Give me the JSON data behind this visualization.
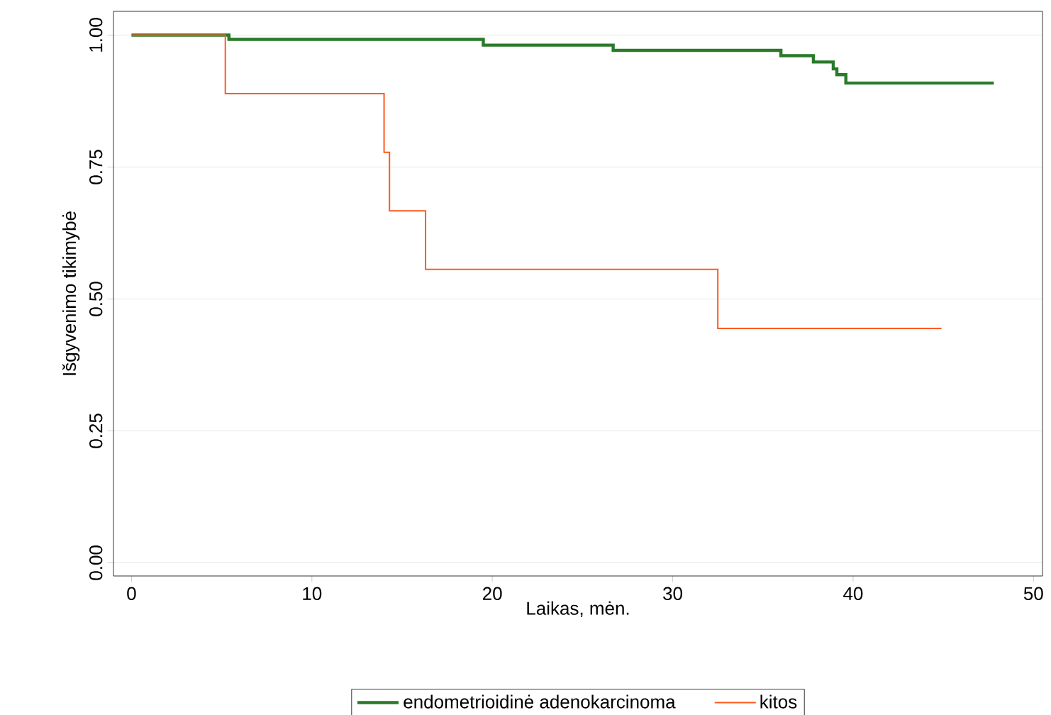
{
  "chart_data": {
    "type": "step",
    "xlabel": "Laikas, mėn.",
    "ylabel": "Išgyvenimo tikimybė",
    "xlim": [
      -1,
      50.5
    ],
    "ylim": [
      -0.025,
      1.045
    ],
    "xticks": [
      0,
      10,
      20,
      30,
      40,
      50
    ],
    "yticks": [
      {
        "value": 0,
        "label": "0.00"
      },
      {
        "value": 0.25,
        "label": "0.25"
      },
      {
        "value": 0.5,
        "label": "0.50"
      },
      {
        "value": 0.75,
        "label": "0.75"
      },
      {
        "value": 1,
        "label": "1.00"
      }
    ],
    "grid": "y",
    "legend": "bottom",
    "series": [
      {
        "name": "endometrioidinė adenokarcinoma",
        "color": "#2a7a2a",
        "x": [
          0,
          5.4,
          19.5,
          26.7,
          36.0,
          37.8,
          38.9,
          39.1,
          39.6,
          47.8
        ],
        "values": [
          1,
          0.992,
          0.981,
          0.971,
          0.961,
          0.949,
          0.936,
          0.925,
          0.909,
          0.909
        ]
      },
      {
        "name": "kitos",
        "color": "#ff5a1f",
        "x": [
          0,
          5.2,
          14.0,
          14.3,
          16.3,
          32.5,
          44.9
        ],
        "values": [
          1,
          0.889,
          0.778,
          0.667,
          0.556,
          0.444,
          0.444
        ]
      }
    ]
  }
}
